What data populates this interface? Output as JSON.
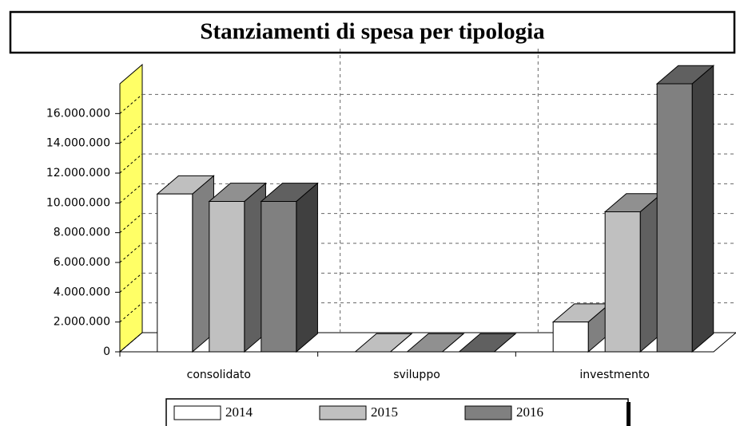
{
  "chart_data": {
    "type": "bar3d",
    "title": "Stanziamenti di spesa per tipologia",
    "categories": [
      "consolidato",
      "sviluppo",
      "investmento"
    ],
    "series": [
      {
        "name": "2014",
        "color": "#ffffff",
        "values": [
          10600000,
          0,
          2000000
        ]
      },
      {
        "name": "2015",
        "color": "#c0c0c0",
        "values": [
          10100000,
          0,
          9400000
        ]
      },
      {
        "name": "2016",
        "color": "#808080",
        "values": [
          10100000,
          0,
          18000000
        ]
      }
    ],
    "ylim": [
      0,
      18000000
    ],
    "yticks": [
      0,
      {
        "value": 2000000,
        "label": "2.000.000"
      },
      {
        "value": 4000000,
        "label": "4.000.000"
      },
      {
        "value": 6000000,
        "label": "6.000.000"
      },
      {
        "value": 8000000,
        "label": "8.000.000"
      },
      {
        "value": 10000000,
        "label": "10.000.000"
      },
      {
        "value": 12000000,
        "label": "12.000.000"
      },
      {
        "value": 14000000,
        "label": "14.000.000"
      },
      {
        "value": 16000000,
        "label": "16.000.000"
      }
    ],
    "grid": true,
    "wall_color": "#ffff66",
    "legend": "bottom"
  }
}
